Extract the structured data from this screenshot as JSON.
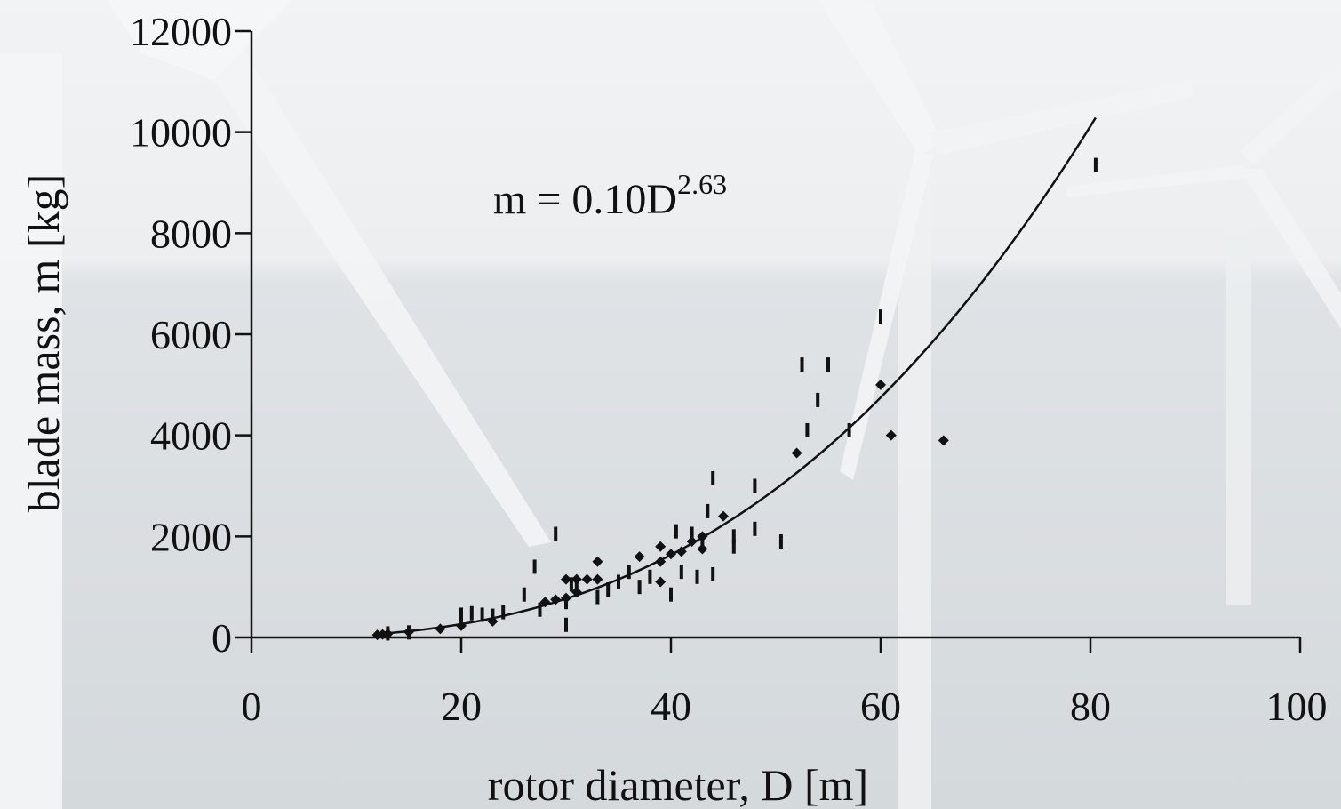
{
  "chart_data": {
    "type": "scatter",
    "title": "",
    "xlabel": "rotor diameter, D [m]",
    "ylabel": "blade mass, m [kg]",
    "xlim": [
      0,
      100
    ],
    "ylim": [
      0,
      12000
    ],
    "x_ticks": [
      "0",
      "20",
      "40",
      "60",
      "80",
      "100"
    ],
    "y_ticks": [
      "0",
      "2000",
      "4000",
      "6000",
      "8000",
      "10000",
      "12000"
    ],
    "annotation": {
      "base": "m = 0.10D",
      "exponent": "2.63"
    },
    "fit": {
      "coefficient": 0.1,
      "exponent": 2.63,
      "x_range": [
        12,
        80.5
      ]
    },
    "series": [
      {
        "marker": "diamond",
        "points": [
          [
            12,
            50
          ],
          [
            12.5,
            60
          ],
          [
            13,
            70
          ],
          [
            15,
            110
          ],
          [
            18,
            170
          ],
          [
            20,
            230
          ],
          [
            23,
            320
          ],
          [
            28,
            700
          ],
          [
            29,
            750
          ],
          [
            30,
            780
          ],
          [
            30,
            1150
          ],
          [
            31,
            1150
          ],
          [
            31,
            900
          ],
          [
            32,
            1150
          ],
          [
            33,
            1500
          ],
          [
            33,
            1150
          ],
          [
            37,
            1600
          ],
          [
            39,
            1800
          ],
          [
            39,
            1500
          ],
          [
            39,
            1100
          ],
          [
            40,
            1650
          ],
          [
            41,
            1700
          ],
          [
            42,
            1900
          ],
          [
            43,
            1750
          ],
          [
            43,
            2000
          ],
          [
            45,
            2400
          ],
          [
            52,
            3650
          ],
          [
            60,
            5000
          ],
          [
            61,
            4000
          ],
          [
            66,
            3900
          ]
        ]
      },
      {
        "marker": "dash",
        "points": [
          [
            13,
            80
          ],
          [
            15,
            100
          ],
          [
            20,
            450
          ],
          [
            21,
            480
          ],
          [
            22,
            450
          ],
          [
            23,
            430
          ],
          [
            24,
            500
          ],
          [
            26,
            850
          ],
          [
            27,
            1400
          ],
          [
            27.5,
            550
          ],
          [
            29,
            2050
          ],
          [
            30,
            700
          ],
          [
            30,
            250
          ],
          [
            30.5,
            1050
          ],
          [
            31,
            950
          ],
          [
            33,
            800
          ],
          [
            34,
            950
          ],
          [
            35,
            1100
          ],
          [
            36,
            1300
          ],
          [
            37,
            1000
          ],
          [
            38,
            1200
          ],
          [
            40,
            850
          ],
          [
            40.5,
            2100
          ],
          [
            41,
            1300
          ],
          [
            42,
            2050
          ],
          [
            42.5,
            1200
          ],
          [
            43,
            1900
          ],
          [
            43.5,
            2500
          ],
          [
            44,
            3150
          ],
          [
            44,
            1250
          ],
          [
            46,
            1800
          ],
          [
            46,
            2000
          ],
          [
            48,
            2150
          ],
          [
            48,
            3000
          ],
          [
            50.5,
            1900
          ],
          [
            52.5,
            5400
          ],
          [
            53,
            4100
          ],
          [
            54,
            4700
          ],
          [
            55,
            5400
          ],
          [
            57,
            4100
          ],
          [
            60,
            6350
          ],
          [
            80.5,
            9350
          ]
        ]
      }
    ]
  }
}
